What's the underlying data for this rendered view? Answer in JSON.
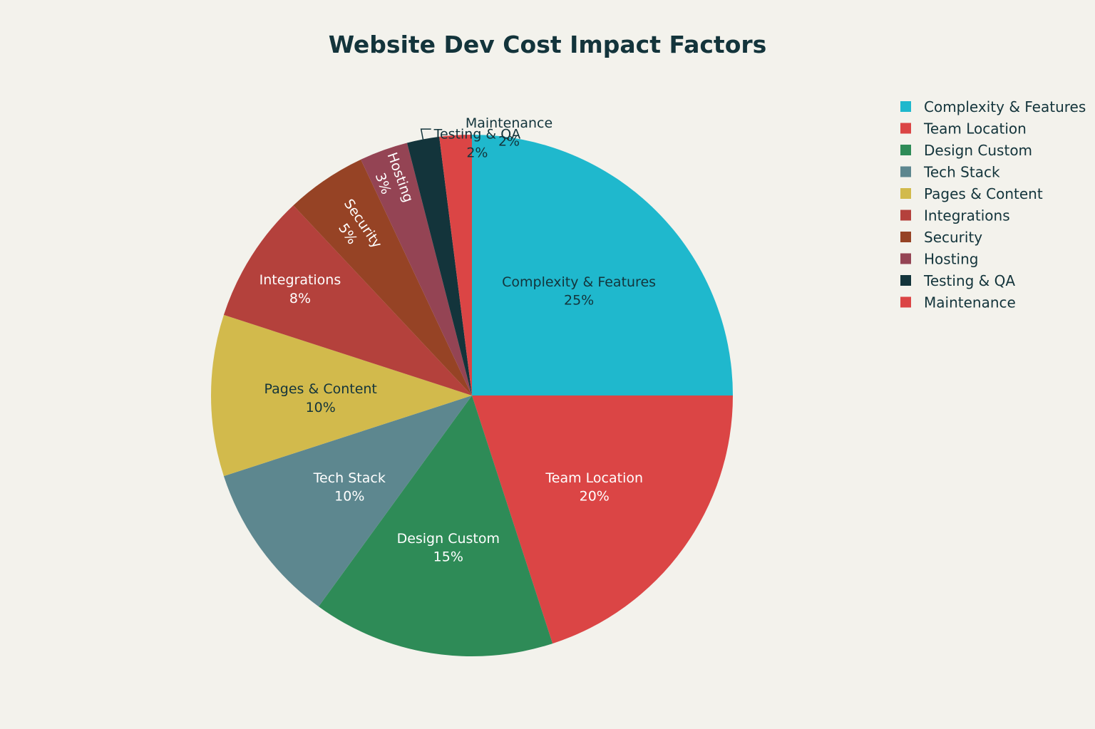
{
  "chart_data": {
    "type": "pie",
    "title": "Website Dev Cost Impact Factors",
    "legend_position": "top-right",
    "direction": "clockwise",
    "start_angle": "12 o'clock",
    "slices": [
      {
        "label": "Complexity & Features",
        "value": 25,
        "display": "25%",
        "color": "#1fb8cd",
        "text_color": "#13343b"
      },
      {
        "label": "Team Location",
        "value": 20,
        "display": "20%",
        "color": "#db4545",
        "text_color": "#ffffff"
      },
      {
        "label": "Design Custom",
        "value": 15,
        "display": "15%",
        "color": "#2e8b57",
        "text_color": "#ffffff"
      },
      {
        "label": "Tech Stack",
        "value": 10,
        "display": "10%",
        "color": "#5d878f",
        "text_color": "#ffffff"
      },
      {
        "label": "Pages & Content",
        "value": 10,
        "display": "10%",
        "color": "#d2ba4c",
        "text_color": "#13343b"
      },
      {
        "label": "Integrations",
        "value": 8,
        "display": "8%",
        "color": "#b4413c",
        "text_color": "#ffffff"
      },
      {
        "label": "Security",
        "value": 5,
        "display": "5%",
        "color": "#964325",
        "text_color": "#ffffff"
      },
      {
        "label": "Hosting",
        "value": 3,
        "display": "3%",
        "color": "#944454",
        "text_color": "#ffffff"
      },
      {
        "label": "Testing & QA",
        "value": 2,
        "display": "2%",
        "color": "#13343b",
        "text_color": "#13343b"
      },
      {
        "label": "Maintenance",
        "value": 2,
        "display": "2%",
        "color": "#db4545",
        "text_color": "#13343b"
      }
    ]
  }
}
